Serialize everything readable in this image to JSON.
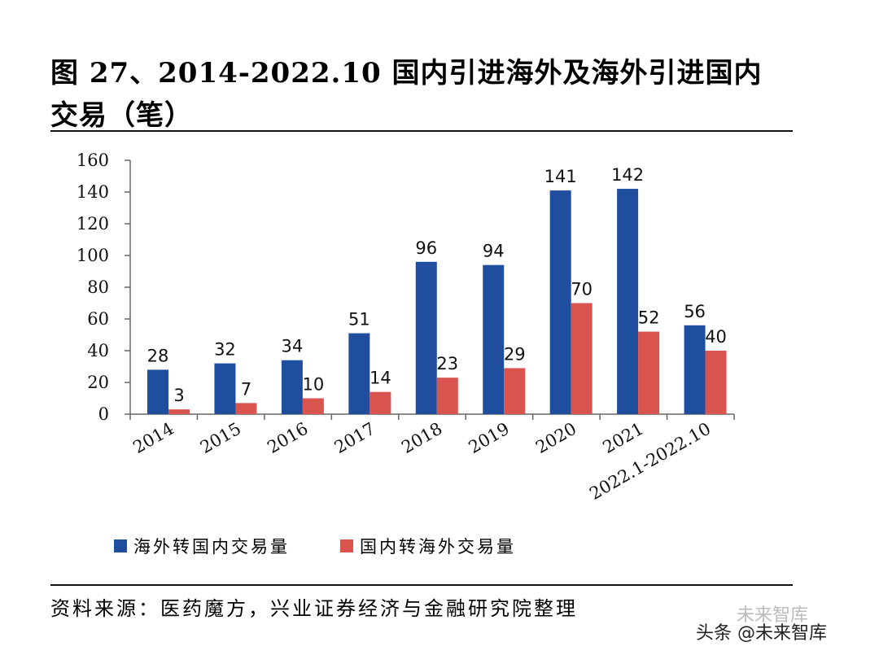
{
  "title": "图 27、2014-2022.10 国内引进海外及海外引进国内交易（笔）",
  "source": "资料来源：医药魔方，兴业证券经济与金融研究院整理",
  "watermark": "未来智库",
  "credit": "头条 @未来智库",
  "colors": {
    "series1": "#1f4e9e",
    "series2": "#d9534f"
  },
  "chart_data": {
    "type": "bar",
    "title": "",
    "xlabel": "",
    "ylabel": "",
    "ylim": [
      0,
      160
    ],
    "yticks": [
      0,
      20,
      40,
      60,
      80,
      100,
      120,
      140,
      160
    ],
    "categories": [
      "2014",
      "2015",
      "2016",
      "2017",
      "2018",
      "2019",
      "2020",
      "2021",
      "2022.1-2022.10"
    ],
    "series": [
      {
        "name": "海外转国内交易量",
        "values": [
          28,
          32,
          34,
          51,
          96,
          94,
          141,
          142,
          56
        ]
      },
      {
        "name": "国内转海外交易量",
        "values": [
          3,
          7,
          10,
          14,
          23,
          29,
          70,
          52,
          40
        ]
      }
    ],
    "legend": "bottom"
  }
}
